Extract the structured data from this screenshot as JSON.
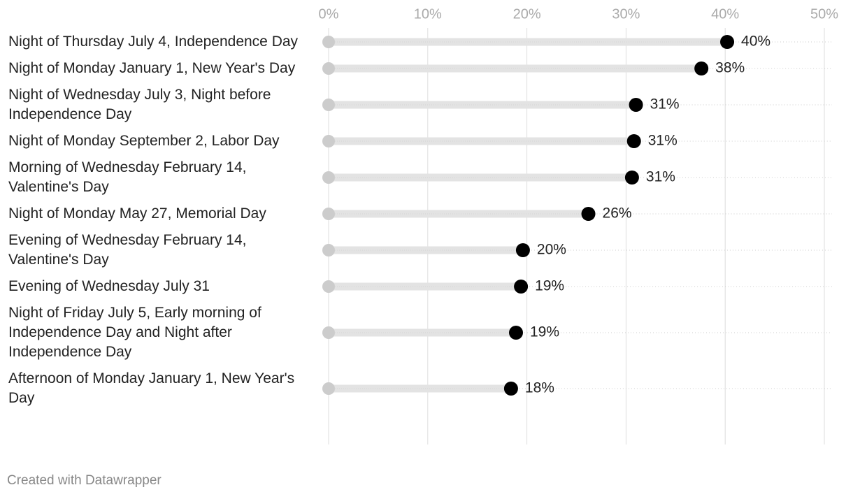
{
  "chart_data": {
    "type": "dot",
    "categories": [
      "Night of Thursday July 4, Independence Day",
      "Night of Monday January 1, New Year's Day",
      "Night of Wednesday July 3, Night before Independence Day",
      "Night of Monday September 2, Labor Day",
      "Morning of Wednesday February 14, Valentine's Day",
      "Night of Monday May 27, Memorial Day",
      "Evening of Wednesday February 14, Valentine's Day",
      "Evening of Wednesday July 31",
      "Night of Friday July 5, Early morning of Independence Day and Night after Independence Day",
      "Afternoon of Monday January 1, New Year's Day"
    ],
    "values": [
      40.2,
      37.6,
      31.0,
      30.8,
      30.6,
      26.2,
      19.6,
      19.4,
      18.9,
      18.4
    ],
    "value_labels": [
      "40%",
      "38%",
      "31%",
      "31%",
      "31%",
      "26%",
      "20%",
      "19%",
      "19%",
      "18%"
    ],
    "color": "#000000",
    "start_color": "#cccccc",
    "xlim": [
      0,
      50
    ],
    "xticks": [
      {
        "value": 0,
        "label": "0%"
      },
      {
        "value": 10,
        "label": "10%"
      },
      {
        "value": 20,
        "label": "20%"
      },
      {
        "value": 30,
        "label": "30%"
      },
      {
        "value": 40,
        "label": "40%"
      },
      {
        "value": 50,
        "label": "50%"
      }
    ],
    "grid": true,
    "footer": "Created with Datawrapper"
  }
}
